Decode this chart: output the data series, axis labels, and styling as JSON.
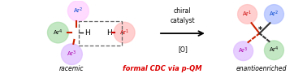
{
  "bg_color": "#ffffff",
  "racemic_label": "racemic",
  "product_label": "enantioenriched",
  "cdc_label": "formal CDC via p-QM",
  "col_Ar1": "#cc0000",
  "col_Ar2": "#0044cc",
  "col_Ar3": "#aa00aa",
  "col_Ar4_text": "#228822",
  "col_bond": "#cc2200",
  "col_red_label": "#dd0000",
  "circle_Ar1": "#ffbbbb",
  "circle_Ar2_right": "#aabbff",
  "circle_Ar2_left": "#ffccff",
  "circle_Ar3": "#ddbbff",
  "circle_Ar4": "#aaddaa",
  "dashed_color": "#666666"
}
